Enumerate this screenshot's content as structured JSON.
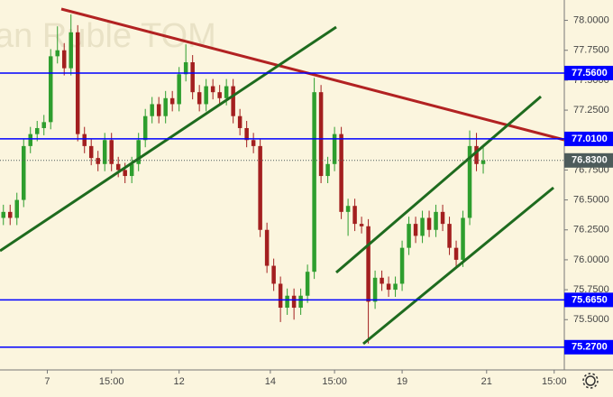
{
  "chart_data": {
    "type": "candlestick",
    "watermark": "an Ruble TOM",
    "open": [
      76.35,
      76.4,
      76.35,
      76.5,
      76.95,
      77.05,
      77.1,
      77.15,
      77.7,
      77.75,
      77.6,
      77.9,
      77.05,
      76.95,
      76.85,
      76.8,
      77.0,
      76.8,
      76.75,
      76.7,
      76.8,
      77.0,
      77.2,
      77.3,
      77.2,
      77.35,
      77.3,
      77.55,
      77.65,
      77.4,
      77.3,
      77.45,
      77.4,
      77.35,
      77.45,
      77.2,
      77.1,
      77.0,
      76.95,
      76.25,
      75.95,
      75.8,
      75.6,
      75.7,
      75.6,
      75.7,
      75.9,
      77.4,
      76.7,
      76.8,
      77.05,
      76.4,
      76.45,
      76.3,
      76.28,
      75.65,
      75.85,
      75.8,
      75.75,
      75.8,
      76.1,
      76.3,
      76.2,
      76.35,
      76.25,
      76.4,
      76.3,
      76.1,
      76.0,
      76.35,
      76.95,
      76.8
    ],
    "high": [
      76.46,
      76.46,
      76.56,
      77.01,
      77.11,
      77.16,
      77.21,
      77.76,
      77.95,
      77.81,
      78.05,
      77.96,
      77.11,
      77.01,
      76.91,
      77.06,
      77.06,
      76.86,
      76.81,
      76.86,
      77.06,
      77.26,
      77.36,
      77.36,
      77.41,
      77.41,
      77.61,
      77.8,
      77.71,
      77.46,
      77.51,
      77.51,
      77.46,
      77.51,
      77.51,
      77.26,
      77.16,
      77.06,
      77.01,
      76.31,
      76.01,
      75.86,
      75.76,
      75.76,
      75.76,
      75.96,
      77.52,
      77.46,
      76.86,
      77.11,
      77.11,
      76.51,
      76.51,
      76.36,
      76.34,
      75.91,
      75.91,
      75.86,
      75.86,
      76.16,
      76.36,
      76.36,
      76.41,
      76.41,
      76.46,
      76.46,
      76.36,
      76.16,
      76.41,
      77.08,
      77.06,
      76.95
    ],
    "low": [
      76.29,
      76.29,
      76.29,
      76.44,
      76.89,
      76.99,
      77.04,
      77.09,
      77.64,
      77.54,
      77.54,
      76.99,
      76.89,
      76.79,
      76.74,
      76.74,
      76.74,
      76.69,
      76.64,
      76.64,
      76.74,
      76.94,
      77.14,
      77.14,
      77.14,
      77.24,
      77.24,
      77.49,
      77.34,
      77.24,
      77.24,
      77.34,
      77.29,
      77.29,
      77.14,
      77.04,
      76.94,
      76.89,
      76.19,
      75.89,
      75.74,
      75.48,
      75.54,
      75.5,
      75.54,
      75.64,
      75.84,
      76.64,
      76.64,
      76.74,
      76.34,
      76.2,
      76.24,
      76.22,
      75.3,
      75.59,
      75.74,
      75.69,
      75.69,
      75.74,
      76.04,
      76.14,
      76.14,
      76.19,
      76.19,
      76.24,
      76.04,
      75.94,
      75.94,
      76.29,
      76.74,
      76.72
    ],
    "close": [
      76.4,
      76.35,
      76.5,
      76.95,
      77.05,
      77.1,
      77.15,
      77.7,
      77.75,
      77.6,
      77.9,
      77.05,
      76.95,
      76.85,
      76.8,
      77.0,
      76.8,
      76.75,
      76.7,
      76.8,
      77.0,
      77.2,
      77.3,
      77.2,
      77.35,
      77.3,
      77.55,
      77.65,
      77.4,
      77.3,
      77.45,
      77.4,
      77.35,
      77.45,
      77.2,
      77.1,
      77.0,
      76.95,
      76.25,
      75.95,
      75.8,
      75.6,
      75.7,
      75.6,
      75.7,
      75.9,
      77.4,
      76.7,
      76.8,
      77.05,
      76.4,
      76.45,
      76.3,
      76.28,
      75.65,
      75.85,
      75.8,
      75.75,
      75.8,
      76.1,
      76.3,
      76.2,
      76.35,
      76.25,
      76.4,
      76.3,
      76.1,
      76.0,
      76.35,
      76.95,
      76.8,
      76.83
    ],
    "up_color": "#2e9e2e",
    "down_color": "#a31f1f",
    "xlim": [
      -0.5,
      83
    ],
    "xticks": [
      {
        "value": 6.5,
        "label": "7"
      },
      {
        "value": 16,
        "label": "15:00"
      },
      {
        "value": 26,
        "label": "12"
      },
      {
        "value": 39.5,
        "label": "14"
      },
      {
        "value": 49,
        "label": "15:00"
      },
      {
        "value": 59,
        "label": "19"
      },
      {
        "value": 71.5,
        "label": "21"
      },
      {
        "value": 81.5,
        "label": "15:00"
      }
    ],
    "ylim": [
      75.08,
      78.17
    ],
    "yticks": [
      {
        "value": 75.5,
        "label": "75.5000"
      },
      {
        "value": 75.75,
        "label": "75.7500"
      },
      {
        "value": 76.0,
        "label": "76.0000"
      },
      {
        "value": 76.25,
        "label": "76.2500"
      },
      {
        "value": 76.5,
        "label": "76.5000"
      },
      {
        "value": 76.75,
        "label": "76.7500"
      },
      {
        "value": 77.0,
        "label": "77.0000"
      },
      {
        "value": 77.25,
        "label": "77.2500"
      },
      {
        "value": 77.5,
        "label": "77.5000"
      },
      {
        "value": 77.75,
        "label": "77.7500"
      },
      {
        "value": 78.0,
        "label": "78.0000"
      }
    ],
    "levels": [
      {
        "value": 77.56,
        "label": "77.5600"
      },
      {
        "value": 77.01,
        "label": "77.0100"
      },
      {
        "value": 75.665,
        "label": "75.6650"
      },
      {
        "value": 75.27,
        "label": "75.2700"
      }
    ],
    "level_color": "#0000ff",
    "last_price": {
      "value": 76.83,
      "label": "76.8300"
    },
    "last_price_color": "#4d5b5b"
  }
}
